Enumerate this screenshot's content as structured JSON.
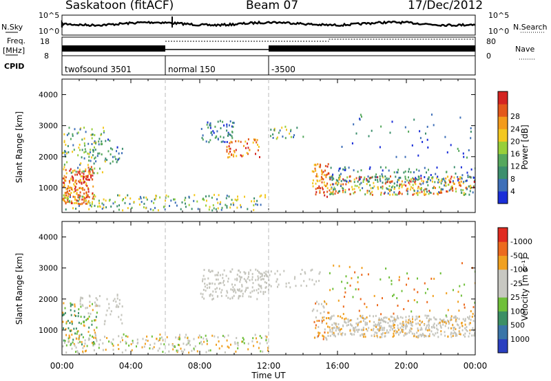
{
  "header": {
    "station": "Saskatoon (fitACF)",
    "beam": "Beam 07",
    "date": "17/Dec/2012"
  },
  "status_panel": {
    "nsky_label": "N.Sky",
    "nsky_ticks": [
      "10^5",
      "10^0"
    ],
    "nsearch_label": "N.Search",
    "nsearch_ticks": [
      "10^5",
      "10^0"
    ],
    "freq_label": "Freq.",
    "freq_unit": "[MHz]",
    "freq_ticks": [
      "18",
      "8"
    ],
    "nave_label": "Nave",
    "nave_ticks": [
      "80",
      "0"
    ],
    "cpid_label": "CPID",
    "cpid_segments": [
      {
        "label": "twofsound 3501",
        "start_h": 0,
        "end_h": 6
      },
      {
        "label": "normal 150",
        "start_h": 6,
        "end_h": 12
      },
      {
        "label": "-3500",
        "start_h": 12,
        "end_h": 24
      }
    ]
  },
  "chart_data": [
    {
      "type": "heatmap",
      "title": "",
      "ylabel": "Slant Range [km]",
      "ylim": [
        200,
        4500
      ],
      "yticks": [
        "1000",
        "2000",
        "3000",
        "4000"
      ],
      "xlim": [
        0,
        24
      ],
      "colorbar": {
        "label": "Power [dB]",
        "ticks": [
          "4",
          "8",
          "12",
          "16",
          "20",
          "24",
          "28"
        ],
        "colors": [
          "#1a2ed8",
          "#3e6fb8",
          "#3d8f6d",
          "#56a85d",
          "#98cf3a",
          "#f3c821",
          "#f39b1c",
          "#e3581b",
          "#d42421"
        ]
      }
    },
    {
      "type": "heatmap",
      "title": "",
      "ylabel": "Slant Range [km]",
      "ylim": [
        200,
        4500
      ],
      "yticks": [
        "1000",
        "2000",
        "3000",
        "4000"
      ],
      "xlim": [
        0,
        24
      ],
      "xticks": [
        "00:00",
        "04:00",
        "08:00",
        "12:00",
        "16:00",
        "20:00",
        "00:00"
      ],
      "xlabel": "Time UT",
      "colorbar": {
        "label": "Velocity [m s⁻¹]",
        "ticks": [
          "1000",
          "500",
          "100",
          "25",
          "-25",
          "-100",
          "-500",
          "-1000"
        ],
        "colors": [
          "#2a3fc0",
          "#3a75a8",
          "#3c8f65",
          "#6fbf3a",
          "#c8c8c2",
          "#c8c8c2",
          "#f0a020",
          "#ec6a1e",
          "#e02a20"
        ]
      }
    }
  ],
  "colors": {
    "ground_scatter": "#c4c4bc",
    "dashed_lines": "#b8b8b8"
  }
}
